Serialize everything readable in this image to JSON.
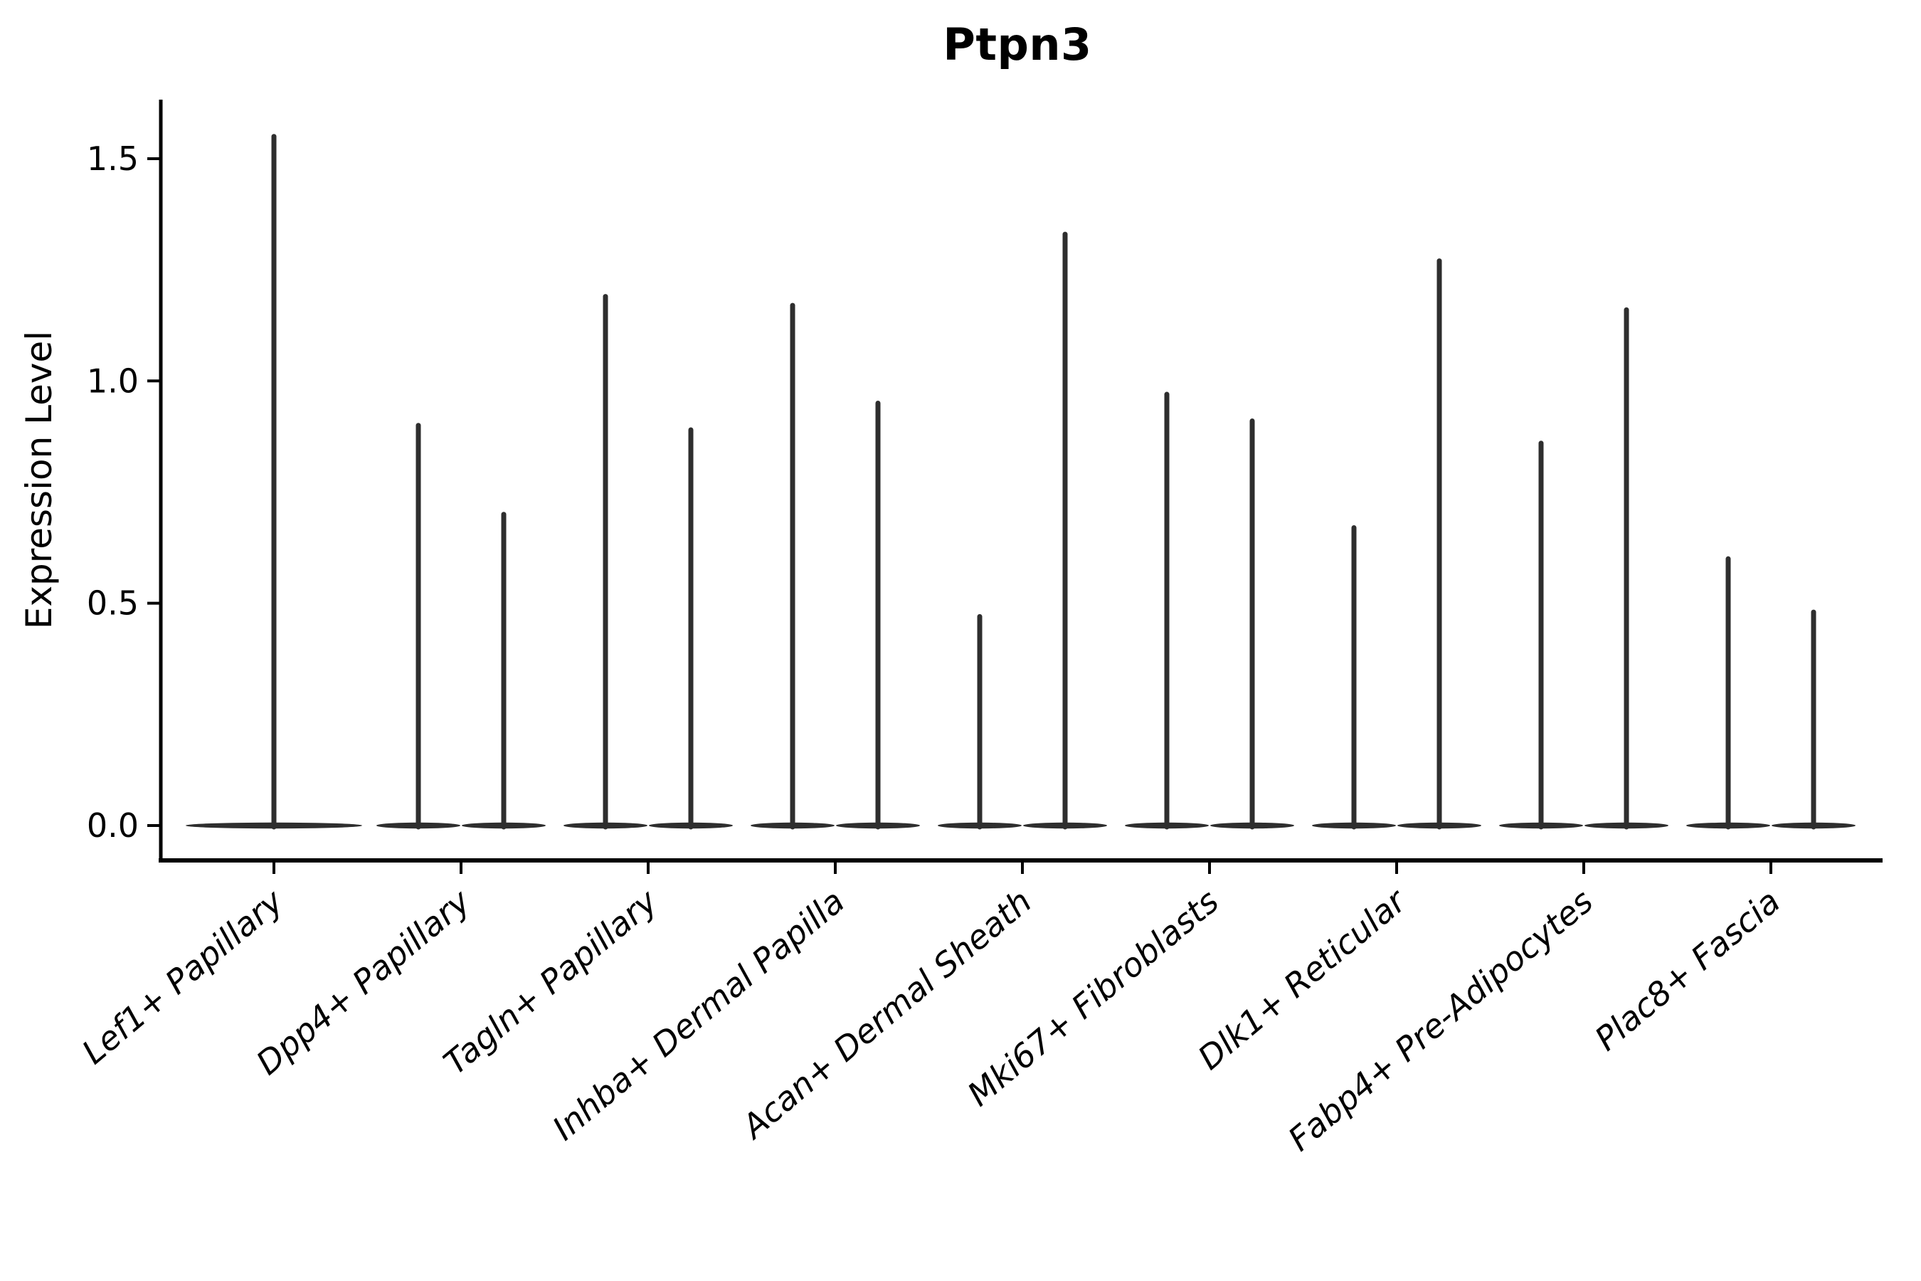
{
  "chart_data": {
    "type": "violin",
    "title": "Ptpn3",
    "xlabel": "",
    "ylabel": "Expression Level",
    "ylim": [
      -0.08,
      1.63
    ],
    "yticks": [
      {
        "value": 0.0,
        "label": "0.0"
      },
      {
        "value": 0.5,
        "label": "0.5"
      },
      {
        "value": 1.0,
        "label": "1.0"
      },
      {
        "value": 1.5,
        "label": "1.5"
      }
    ],
    "grid": "off",
    "legend": "none",
    "x_tick_rotation_deg": 40,
    "x_tick_font_style": "italic",
    "violin_color": "#2e2e2e",
    "axis_color": "#000000",
    "categories": [
      "Lef1+ Papillary",
      "Dpp4+ Papillary",
      "Tagln+ Papillary",
      "Inhba+ Dermal Papilla",
      "Acan+ Dermal Sheath",
      "Mki67+ Fibroblasts",
      "Dlk1+ Reticular",
      "Fabp4+ Pre-Adipocytes",
      "Plac8+ Fascia"
    ],
    "groups": [
      {
        "category": "Lef1+ Papillary",
        "violins": [
          {
            "max": 1.55
          }
        ]
      },
      {
        "category": "Dpp4+ Papillary",
        "violins": [
          {
            "max": 0.9
          },
          {
            "max": 0.7
          }
        ]
      },
      {
        "category": "Tagln+ Papillary",
        "violins": [
          {
            "max": 1.19
          },
          {
            "max": 0.89
          }
        ]
      },
      {
        "category": "Inhba+ Dermal Papilla",
        "violins": [
          {
            "max": 1.17
          },
          {
            "max": 0.95
          }
        ]
      },
      {
        "category": "Acan+ Dermal Sheath",
        "violins": [
          {
            "max": 0.47
          },
          {
            "max": 1.33
          }
        ]
      },
      {
        "category": "Mki67+ Fibroblasts",
        "violins": [
          {
            "max": 0.97
          },
          {
            "max": 0.91
          }
        ]
      },
      {
        "category": "Dlk1+ Reticular",
        "violins": [
          {
            "max": 0.67
          },
          {
            "max": 1.27
          }
        ]
      },
      {
        "category": "Fabp4+ Pre-Adipocytes",
        "violins": [
          {
            "max": 0.86
          },
          {
            "max": 1.16
          }
        ]
      },
      {
        "category": "Plac8+ Fascia",
        "violins": [
          {
            "max": 0.6
          },
          {
            "max": 0.48
          }
        ]
      }
    ],
    "distribution_note": "Every violin's mass is concentrated at 0 (flat collapsed body on the baseline) with a thin density tail rising to the listed max expression value."
  }
}
